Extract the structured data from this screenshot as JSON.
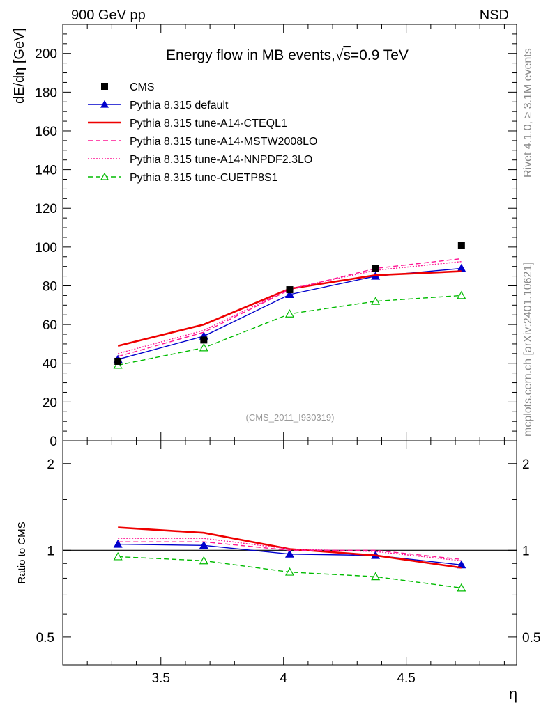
{
  "header": {
    "left_label": "900 GeV pp",
    "right_label": "NSD"
  },
  "side_labels": {
    "rivet": "Rivet 4.1.0, ≥ 3.1M events",
    "mcplots": "mcplots.cern.ch [arXiv:2401.10621]"
  },
  "chart_data": [
    {
      "type": "line",
      "title": "Energy flow in MB events, √s=0.9 TeV",
      "title_prefix": "Energy flow in MB events,",
      "title_sqrt": "√",
      "title_s": "s",
      "title_suffix": "=0.9 TeV",
      "analysis_tag": "(CMS_2011_I930319)",
      "xlabel": "η",
      "ylabel": "dE/dη [GeV]",
      "xlim": [
        3.1,
        4.95
      ],
      "ylim": [
        0,
        215
      ],
      "yticks": [
        0,
        20,
        40,
        60,
        80,
        100,
        120,
        140,
        160,
        180,
        200
      ],
      "ytick_labels": [
        "0",
        "20",
        "40",
        "60",
        "80",
        "100",
        "120",
        "140",
        "160",
        "180",
        "200"
      ],
      "x": [
        3.325,
        3.675,
        4.025,
        4.375,
        4.725
      ],
      "data": {
        "name": "CMS",
        "values": [
          41.0,
          52.0,
          78.0,
          89.0,
          101.0
        ]
      },
      "series": [
        {
          "name": "Pythia 8.315 default",
          "color": "#0000cc",
          "style": "solid",
          "marker": "filled-triangle",
          "values": [
            42.0,
            54.0,
            75.5,
            85.0,
            89.0
          ]
        },
        {
          "name": "Pythia 8.315 tune-A14-CTEQL1",
          "color": "#ee0000",
          "style": "solid-thick",
          "marker": "none",
          "values": [
            49.0,
            60.0,
            78.5,
            85.5,
            87.5
          ]
        },
        {
          "name": "Pythia 8.315 tune-A14-MSTW2008LO",
          "color": "#ff1493",
          "style": "dashed",
          "marker": "none",
          "values": [
            43.5,
            56.0,
            78.0,
            89.0,
            94.0
          ]
        },
        {
          "name": "Pythia 8.315 tune-A14-NNPDF2.3LO",
          "color": "#ff1493",
          "style": "dotted",
          "marker": "none",
          "values": [
            45.0,
            57.0,
            78.5,
            88.0,
            92.5
          ]
        },
        {
          "name": "Pythia 8.315 tune-CUETP8S1",
          "color": "#00bb00",
          "style": "dashed",
          "marker": "open-triangle",
          "values": [
            39.0,
            48.0,
            65.5,
            72.0,
            75.0
          ]
        }
      ]
    },
    {
      "type": "line",
      "ylabel": "Ratio to CMS",
      "xlabel": "η",
      "xlim": [
        3.1,
        4.95
      ],
      "yscale": "log",
      "ylim": [
        0.4,
        2.4
      ],
      "yticks": [
        0.5,
        1,
        2
      ],
      "ytick_labels": [
        "0.5",
        "1",
        "2"
      ],
      "xticks": [
        3.5,
        4.0,
        4.5
      ],
      "xtick_labels": [
        "3.5",
        "4",
        "4.5"
      ],
      "x": [
        3.325,
        3.675,
        4.025,
        4.375,
        4.725
      ],
      "reference_line": 1.0,
      "series": [
        {
          "name": "Pythia 8.315 default",
          "color": "#0000cc",
          "style": "solid",
          "marker": "filled-triangle",
          "values": [
            1.05,
            1.04,
            0.97,
            0.96,
            0.89
          ]
        },
        {
          "name": "Pythia 8.315 tune-A14-CTEQL1",
          "color": "#ee0000",
          "style": "solid-thick",
          "marker": "none",
          "values": [
            1.2,
            1.15,
            1.01,
            0.96,
            0.87
          ]
        },
        {
          "name": "Pythia 8.315 tune-A14-MSTW2008LO",
          "color": "#ff1493",
          "style": "dashed",
          "marker": "none",
          "values": [
            1.07,
            1.07,
            1.0,
            1.0,
            0.93
          ]
        },
        {
          "name": "Pythia 8.315 tune-A14-NNPDF2.3LO",
          "color": "#ff1493",
          "style": "dotted",
          "marker": "none",
          "values": [
            1.1,
            1.1,
            1.01,
            0.99,
            0.92
          ]
        },
        {
          "name": "Pythia 8.315 tune-CUETP8S1",
          "color": "#00bb00",
          "style": "dashed",
          "marker": "open-triangle",
          "values": [
            0.95,
            0.92,
            0.84,
            0.81,
            0.74
          ]
        }
      ]
    }
  ]
}
